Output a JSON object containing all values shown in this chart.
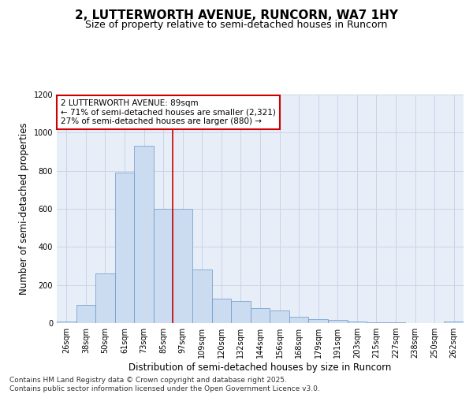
{
  "title": "2, LUTTERWORTH AVENUE, RUNCORN, WA7 1HY",
  "subtitle": "Size of property relative to semi-detached houses in Runcorn",
  "xlabel": "Distribution of semi-detached houses by size in Runcorn",
  "ylabel": "Number of semi-detached properties",
  "categories": [
    "26sqm",
    "38sqm",
    "50sqm",
    "61sqm",
    "73sqm",
    "85sqm",
    "97sqm",
    "109sqm",
    "120sqm",
    "132sqm",
    "144sqm",
    "156sqm",
    "168sqm",
    "179sqm",
    "191sqm",
    "203sqm",
    "215sqm",
    "227sqm",
    "238sqm",
    "250sqm",
    "262sqm"
  ],
  "values": [
    10,
    95,
    260,
    790,
    930,
    600,
    600,
    280,
    130,
    115,
    80,
    65,
    35,
    20,
    15,
    10,
    5,
    3,
    2,
    1,
    10
  ],
  "bar_color": "#ccdcf0",
  "bar_edge_color": "#6699cc",
  "bar_edge_width": 0.5,
  "vline_color": "#cc0000",
  "annotation_text": "2 LUTTERWORTH AVENUE: 89sqm\n← 71% of semi-detached houses are smaller (2,321)\n27% of semi-detached houses are larger (880) →",
  "annotation_box_color": "#ffffff",
  "annotation_box_edge_color": "#cc0000",
  "ylim": [
    0,
    1200
  ],
  "yticks": [
    0,
    200,
    400,
    600,
    800,
    1000,
    1200
  ],
  "grid_color": "#c8d4e8",
  "bg_color": "#e8eef8",
  "footer_text": "Contains HM Land Registry data © Crown copyright and database right 2025.\nContains public sector information licensed under the Open Government Licence v3.0.",
  "title_fontsize": 11,
  "subtitle_fontsize": 9,
  "axis_label_fontsize": 8.5,
  "tick_fontsize": 7,
  "annotation_fontsize": 7.5,
  "footer_fontsize": 6.5
}
